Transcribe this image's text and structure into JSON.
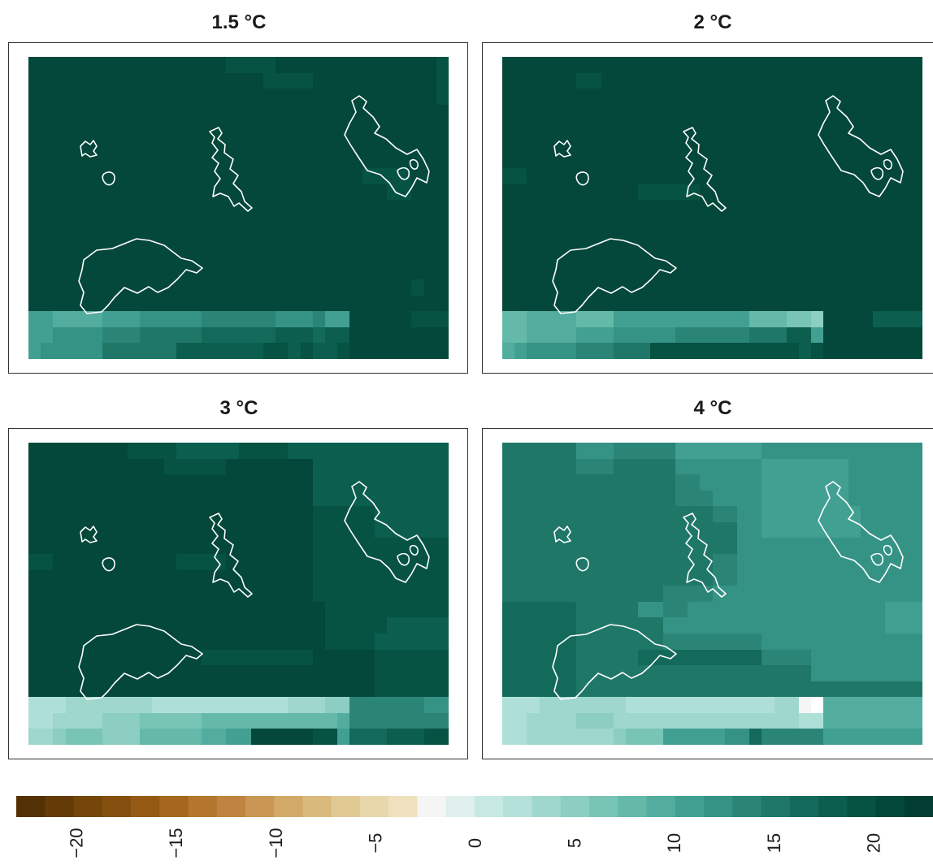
{
  "figure": {
    "panel_titles": [
      "1.5 °C",
      "2 °C",
      "3 °C",
      "4 °C"
    ]
  },
  "chart_data": {
    "type": "heatmap",
    "title": "",
    "panels": [
      {
        "name": "1.5 °C",
        "grid": [
          "RRRRRRRRRRRRRRRRQQQQRRRRRRRRRRRRRQ",
          "RRRRRRRRRRRRRRRRRRRQQQQRRRRRRRRRRQ",
          "RRRRRRRRRRRRRRRRRRRRRRRRRRRRRRRRRQ",
          "RRRRRRRRRRRRRRRRRRRRRRRRRRRRRRRRRR",
          "RRRRRRRRRRRRRRRRRRRRRRRRRRRRRRRRRR",
          "RRRRRRRRRRRRRRRRRRRRRRRRRRRRRRRRRR",
          "RRRRRRRRRRRRRRRRRRRRRRRRRRRRRRRRRR",
          "RRRRRRRRRRRRRRRRRRRRRRRRRRRQQQQRRR",
          "RRRRRRRRRRRRRRRRRRRRRRRRRRRRRQQRRR",
          "RRRRRRRRRRRRRRRRRRRRRRRRRRRRRRRRRR",
          "RRRRRRRRRRRRRRRRRRRRRRRRRRRRRRRRRR",
          "RRRRRRRRRRRRRRRRRRRRRRRRRRRRRRRRRR",
          "RRRRRRRRRRRRRRRRRRRRRRRRRRRRRRRRRR",
          "RRRRRRRRRRRRRRRRRRRRRRRRRRRRRRRRRR",
          "RRRRRRRRRRRRRRRRRRRRRRRRRRRRRRRQRR",
          "RRRRRRRRRRRRRRRRRRRRRRRRRRRRRRRRRR",
          "KKJJJJKKKLLLLLMMMMMMLLLMKKRRRRRQQQ",
          "KKLLLLMMMNNNNNOOOOOOPPPOPPRRRRRRRR",
          "KLLLLLNNNNNNPPPPPPPQQPQPPQRRRRRRRR"
        ]
      },
      {
        "name": "2 °C",
        "grid": [
          "RRRRRRRRRRRRRRRRRRRRRRRRRRRRRRRRRR",
          "RRRRRRQQRRRRRRRRRRRRRRRRRRRRRRRRRR",
          "RRRRRRRRRRRRRRRRRRRRRRRRRRRRRRRRRR",
          "RRRRRRRRRRRRRRRRRRRRRRRRRRRRRRRRRR",
          "RRRRRRRRRRRRRRRRRRRRRRRRRRRRRRRRRR",
          "RRRRRRRRRRRRRRRRRRRRRRRRRRRRRRRRRR",
          "RRRRRRRRRRRRRRRRRRRRRRRRRRRRRRRRRR",
          "QQRRRRRRRRRRRRRRRRRRRRRRRRRRRRRRRR",
          "RRRRRRRRRRRQQQQQRRRRRRRRRRRRRRRRRR",
          "RRRRRRRRRRRRRRRRRRRRRRRRRRRRRRRRRR",
          "RRRRRRRRRRRRRRRRRRRRRRRRRRRRRRRRRR",
          "RRRRRRRRRRRRRRRRRRRRRRRRRRRRRRRRRR",
          "RRRRRRRRRRRRRRRRRRRRRRRRRRRRRRRRRR",
          "RRRRRRRRRRRRRRRRRRRRRRRRRRRRRRRRRR",
          "RRRRRRRRRRRRRRRRRRRRRRRRRRRRRRRRRR",
          "RRRRRRRRRRRRRRRRRRRRRRRRRRRRRRRRRR",
          "IIJJJJIIIKKKKKKKKKKKIIIHHGRRRRPPPP",
          "IIJJJJKKKLLLLLMMMMMMNNNPPKRRRRRRRR",
          "JKLLLLMMMNNNQQQQQQQQQQQQPQRRRRRRRR"
        ]
      },
      {
        "name": "3 °C",
        "grid": [
          "RRRRRRRRQQQQPPPPPQQQQPPPPPPPPPPPPP",
          "RRRRRRRRRRRQQQQQRRRRRRRPPPPPPPPPPP",
          "RRRRRRRRRRRRRRRRRRRRRRRPPPPPPPPPPP",
          "RRRRRRRRRRRRRRRRRRRRRRRPPPPPPPPPPP",
          "RRRRRRRRRRRRRRRRRRRRRRRQQQQQPPPPPP",
          "RRRRRRRRRRRRRRRRRRRRRRRQQQQQPPPPPP",
          "RRRRRRRRRRRRRRRRRRRRRRRQQQQQQQQQQQ",
          "QQRRRRRRRRRRQQQQRRRRRRRQQQQQQQQQQQ",
          "RRRRRRRRRRRRRRRRRRRRRRRQQQQQQQQQQQ",
          "RRRRRRRRRRRRRRRRRRRRRRRQQQQQQQQQQQ",
          "RRRRRRRRRRRRRRRRRRRRRRRRQQQQQQQQQQ",
          "RRRRRRRRRRRRRRRRRRRRRRRRQQQQQPPPPP",
          "RRRRRRRRRRRRRRRRRRRRRRRRQQQQPPPPPP",
          "RRRRRRRRRRRRRRQQQQQQQQQRRRRRQQQQQQ",
          "RRRRRRRRRRRRRRRRRRRRRRRRRRRRQQQQQQ",
          "RRRRRRRRRRRRRRRRRRRRRRRRRRRRQQQQQQ",
          "EEEFFFFFFFEEEEEEEEEEEFFFGGMMMMMMLL",
          "EEFFFFGGGHHHHHIIIIIIIIIIIJMMMMMMMM",
          "FFGHHHGGGIIIIIJJKKRRRRRQQKOOOPPPQQ"
        ]
      },
      {
        "name": "4 °C",
        "grid": [
          "NNNNNNLLLMMMMMKKKKKKKLLLLLLLLLLLLL",
          "NNNNNNMMMNNNNNLLLLLLLKKKKKKKLLLLLL",
          "NNNNNNNNNNNNNNMMLLLLLKKKKKKKLLLLLL",
          "NNNNNNNNNNNNNNMMMLLLLKKKKKKKLLLLLL",
          "NNNNNNNNNNNNNNNNNMMLLKKKKKKKKLLLLL",
          "NNNNNNNNNNNNNNNNNNNLLKKKKKKKKLLLLL",
          "NNNNNNNNNNNNNNNNNNNLLLLLLLLLLLLLLL",
          "NNNNNNNNNNNNNNNNNMMLLLLLLLLLLLLLLL",
          "NNNNNNNNNNNNNNNNNMMLLLLLLLLLLLLLLL",
          "NNNNNNNNNNNNNMMMMLLLLLLLLLLLLLLLLL",
          "OOOOOONNNNNLLMMLLLLLLLLLLLLLLLLKKK",
          "OOOOOONNNNNNNLLLLLLLLLLLLLLLLLLKKK",
          "OOOOOONNNNNNNMMMMMMMMLLLLLLLLLLLLL",
          "OOOOOONNNNNOOOOOOOOOOMMMMLLLLLLLLL",
          "OOOOOONNNNNNNNNNNNNNNNNNNLLLLLLLLL",
          "OOOOOONNNNNNNNNNNNNNNNNNNNNNNNNNNN",
          "EEEFFFFFFFEEEEEEEEEEEEFFA#JJJJJJJJ",
          "EEFFFFGGGFFFFFFFFFFFFFFFEEJJJJJJJJ",
          "EEFFFFFFFGHHHKKKKKLLOMMMMMKKKKKKKK"
        ]
      }
    ],
    "legend": {
      "colors": [
        "#543005",
        "#643a07",
        "#74460a",
        "#844f0e",
        "#945a14",
        "#a5661f",
        "#b4752e",
        "#c08440",
        "#c99653",
        "#d2a967",
        "#dab97c",
        "#e1c994",
        "#e8d7aa",
        "#efe1bd",
        "#f5f5f5",
        "#dfefec",
        "#c7e9e3",
        "#b4e1d9",
        "#a0d7cd",
        "#8ccec1",
        "#78c4b5",
        "#64b9a9",
        "#52ad9e",
        "#42a093",
        "#359385",
        "#2a8577",
        "#1f7768",
        "#146a5a",
        "#0c5e4e",
        "#065343",
        "#03483a",
        "#013d31"
      ],
      "tick_labels": [
        "−20",
        "−15",
        "−10",
        "−5",
        "0",
        "5",
        "10",
        "15",
        "20"
      ],
      "tick_values": [
        -20,
        -15,
        -10,
        -5,
        0,
        5,
        10,
        15,
        20
      ],
      "range": [
        -23,
        23
      ]
    }
  }
}
